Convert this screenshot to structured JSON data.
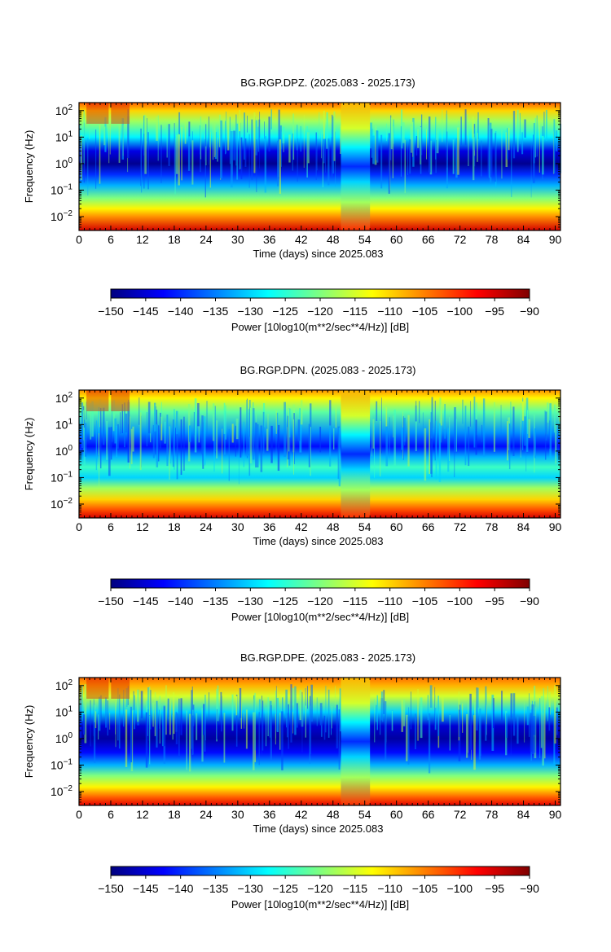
{
  "colorbar": {
    "label": "Power [10log10(m**2/sec**4/Hz)] [dB]",
    "range": [
      -150,
      -90
    ],
    "ticks": [
      -150,
      -145,
      -140,
      -135,
      -130,
      -125,
      -120,
      -115,
      -110,
      -105,
      -100,
      -95,
      -90
    ],
    "colormap": [
      "#00007f",
      "#0000ff",
      "#007fff",
      "#00ffff",
      "#7fff7f",
      "#ffff00",
      "#ff7f00",
      "#ff0000",
      "#7f0000"
    ]
  },
  "chart_data": [
    {
      "type": "heatmap",
      "title": "BG.RGP.DPZ. (2025.083 - 2025.173)",
      "xlabel": "Time (days) since 2025.083",
      "ylabel": "Frequency (Hz)",
      "xlim": [
        0,
        91
      ],
      "ylim": [
        0.003,
        200
      ],
      "yscale": "log",
      "xticks": [
        0,
        6,
        12,
        18,
        24,
        30,
        36,
        42,
        48,
        54,
        60,
        66,
        72,
        78,
        84,
        90
      ],
      "yticks": [
        0.01,
        0.1,
        1,
        10,
        100
      ],
      "ytick_labels": [
        [
          "10",
          "−2"
        ],
        [
          "10",
          "−1"
        ],
        [
          "10",
          "0"
        ],
        [
          "10",
          "1"
        ],
        [
          "10",
          "2"
        ]
      ],
      "gap_days": [
        49.5,
        55
      ],
      "profile": [
        {
          "freq": 200,
          "db": -103
        },
        {
          "freq": 100,
          "db": -110
        },
        {
          "freq": 40,
          "db": -118
        },
        {
          "freq": 10,
          "db": -128
        },
        {
          "freq": 3,
          "db": -144
        },
        {
          "freq": 1,
          "db": -149
        },
        {
          "freq": 0.4,
          "db": -140
        },
        {
          "freq": 0.15,
          "db": -132
        },
        {
          "freq": 0.05,
          "db": -120
        },
        {
          "freq": 0.02,
          "db": -112
        },
        {
          "freq": 0.01,
          "db": -106
        },
        {
          "freq": 0.003,
          "db": -95
        }
      ]
    },
    {
      "type": "heatmap",
      "title": "BG.RGP.DPN. (2025.083 - 2025.173)",
      "xlabel": "Time (days) since 2025.083",
      "ylabel": "Frequency (Hz)",
      "xlim": [
        0,
        91
      ],
      "ylim": [
        0.003,
        200
      ],
      "yscale": "log",
      "xticks": [
        0,
        6,
        12,
        18,
        24,
        30,
        36,
        42,
        48,
        54,
        60,
        66,
        72,
        78,
        84,
        90
      ],
      "yticks": [
        0.01,
        0.1,
        1,
        10,
        100
      ],
      "ytick_labels": [
        [
          "10",
          "−2"
        ],
        [
          "10",
          "−1"
        ],
        [
          "10",
          "0"
        ],
        [
          "10",
          "1"
        ],
        [
          "10",
          "2"
        ]
      ],
      "gap_days": [
        49.5,
        55
      ],
      "profile": [
        {
          "freq": 200,
          "db": -106
        },
        {
          "freq": 100,
          "db": -112
        },
        {
          "freq": 30,
          "db": -122
        },
        {
          "freq": 5,
          "db": -134
        },
        {
          "freq": 1.5,
          "db": -142
        },
        {
          "freq": 0.6,
          "db": -132
        },
        {
          "freq": 0.25,
          "db": -124
        },
        {
          "freq": 0.1,
          "db": -130
        },
        {
          "freq": 0.04,
          "db": -118
        },
        {
          "freq": 0.015,
          "db": -110
        },
        {
          "freq": 0.006,
          "db": -102
        },
        {
          "freq": 0.003,
          "db": -95
        }
      ]
    },
    {
      "type": "heatmap",
      "title": "BG.RGP.DPE. (2025.083 - 2025.173)",
      "xlabel": "Time (days) since 2025.083",
      "ylabel": "Frequency (Hz)",
      "xlim": [
        0,
        91
      ],
      "ylim": [
        0.003,
        200
      ],
      "yscale": "log",
      "xticks": [
        0,
        6,
        12,
        18,
        24,
        30,
        36,
        42,
        48,
        54,
        60,
        66,
        72,
        78,
        84,
        90
      ],
      "yticks": [
        0.01,
        0.1,
        1,
        10,
        100
      ],
      "ytick_labels": [
        [
          "10",
          "−2"
        ],
        [
          "10",
          "−1"
        ],
        [
          "10",
          "0"
        ],
        [
          "10",
          "1"
        ],
        [
          "10",
          "2"
        ]
      ],
      "gap_days": [
        49.5,
        55
      ],
      "profile": [
        {
          "freq": 200,
          "db": -104
        },
        {
          "freq": 100,
          "db": -108
        },
        {
          "freq": 40,
          "db": -115
        },
        {
          "freq": 10,
          "db": -130
        },
        {
          "freq": 3,
          "db": -145
        },
        {
          "freq": 1,
          "db": -148
        },
        {
          "freq": 0.3,
          "db": -142
        },
        {
          "freq": 0.1,
          "db": -132
        },
        {
          "freq": 0.04,
          "db": -120
        },
        {
          "freq": 0.015,
          "db": -112
        },
        {
          "freq": 0.006,
          "db": -103
        },
        {
          "freq": 0.003,
          "db": -96
        }
      ]
    }
  ]
}
